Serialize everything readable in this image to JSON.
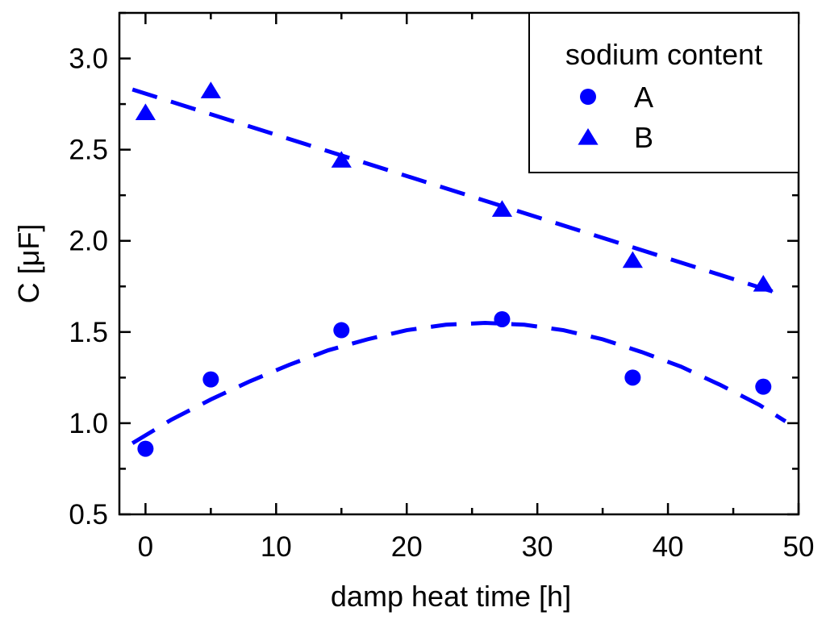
{
  "chart_data": {
    "type": "scatter",
    "title": "",
    "xlabel": "damp heat time [h]",
    "ylabel": "C [μF]",
    "xlim": [
      -2,
      50
    ],
    "ylim": [
      0.5,
      3.25
    ],
    "xticks": [
      0,
      10,
      20,
      30,
      40,
      50
    ],
    "xtick_labels": [
      "0",
      "10",
      "20",
      "30",
      "40",
      "50"
    ],
    "yticks": [
      0.5,
      1.0,
      1.5,
      2.0,
      2.5,
      3.0
    ],
    "ytick_labels": [
      "0.5",
      "1.0",
      "1.5",
      "2.0",
      "2.5",
      "3.0"
    ],
    "grid": false,
    "legend": {
      "title": "sodium content",
      "placement": "top-right",
      "entries": [
        {
          "label": "A",
          "marker": "circle"
        },
        {
          "label": "B",
          "marker": "triangle"
        }
      ]
    },
    "series": [
      {
        "name": "A",
        "marker": "circle",
        "color": "#0000ff",
        "x": [
          0,
          5,
          15,
          27.3,
          37.3,
          47.3
        ],
        "y": [
          0.86,
          1.24,
          1.51,
          1.57,
          1.25,
          1.2
        ],
        "fit": {
          "style": "dashed",
          "x": [
            -1,
            2,
            5,
            8,
            11,
            14,
            17,
            20,
            23,
            26,
            29,
            32,
            35,
            38,
            41,
            44,
            47,
            49
          ],
          "y": [
            0.89,
            1.02,
            1.13,
            1.23,
            1.32,
            1.4,
            1.46,
            1.51,
            1.54,
            1.55,
            1.54,
            1.51,
            1.46,
            1.39,
            1.31,
            1.21,
            1.1,
            1.01
          ]
        }
      },
      {
        "name": "B",
        "marker": "triangle",
        "color": "#0000ff",
        "x": [
          0,
          5,
          15,
          27.3,
          37.3,
          47.3
        ],
        "y": [
          2.7,
          2.82,
          2.44,
          2.17,
          1.89,
          1.76
        ],
        "fit": {
          "style": "dashed",
          "x": [
            -1,
            49
          ],
          "y": [
            2.83,
            1.7
          ]
        }
      }
    ]
  }
}
